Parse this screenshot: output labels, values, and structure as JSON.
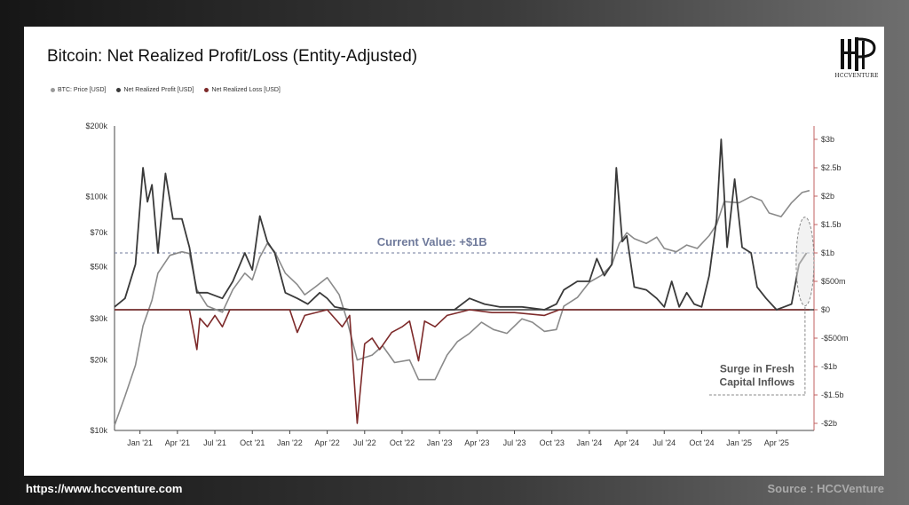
{
  "title": "Bitcoin: Net Realized Profit/Loss (Entity-Adjusted)",
  "logo": {
    "text": "HCCVENTURE"
  },
  "footer": {
    "url": "https://www.hccventure.com",
    "source": "Source : HCCVenture"
  },
  "colors": {
    "price": "#8a8a8a",
    "profit": "#3a3a3a",
    "loss": "#7d2a2a",
    "current": "#6f7a9b"
  },
  "chart_data": {
    "type": "line",
    "title": "Bitcoin: Net Realized Profit/Loss (Entity-Adjusted)",
    "legend": [
      "BTC: Price [USD]",
      "Net Realized Profit [USD]",
      "Net Realized Loss [USD]"
    ],
    "legend_position": "top-left",
    "x_ticks": [
      "Jan '21",
      "Apr '21",
      "Jul '21",
      "Oct '21",
      "Jan '22",
      "Apr '22",
      "Jul '22",
      "Oct '22",
      "Jan '23",
      "Apr '23",
      "Jul '23",
      "Oct '23",
      "Jan '24",
      "Apr '24",
      "Jul '24",
      "Oct '24",
      "Jan '25",
      "Apr '25"
    ],
    "y_left_ticks": [
      "$200k",
      "$100k",
      "$70k",
      "$50k",
      "$30k",
      "$20k",
      "$10k"
    ],
    "y_left_scale": "log",
    "y_left_range": [
      10000,
      200000
    ],
    "y_right_ticks": [
      "$3b",
      "$2.5b",
      "$2b",
      "$1.5b",
      "$1b",
      "$500m",
      "$0",
      "-$500m",
      "-$1b",
      "-$1.5b",
      "-$2b"
    ],
    "y_right_range": [
      -2,
      3
    ],
    "grid": false,
    "annotations": {
      "current_value": "Current Value: +$1B",
      "surge": [
        "Surge in Fresh",
        "Capital Inflows"
      ]
    },
    "series": [
      {
        "name": "BTC: Price [USD]",
        "values": [
          [
            2020.83,
            10500
          ],
          [
            2020.9,
            14000
          ],
          [
            2020.97,
            19000
          ],
          [
            2021.02,
            28000
          ],
          [
            2021.08,
            36000
          ],
          [
            2021.12,
            47000
          ],
          [
            2021.2,
            56000
          ],
          [
            2021.28,
            58000
          ],
          [
            2021.33,
            57000
          ],
          [
            2021.38,
            40000
          ],
          [
            2021.45,
            34000
          ],
          [
            2021.55,
            32000
          ],
          [
            2021.62,
            40000
          ],
          [
            2021.7,
            47000
          ],
          [
            2021.75,
            44000
          ],
          [
            2021.8,
            55000
          ],
          [
            2021.85,
            63000
          ],
          [
            2021.9,
            58000
          ],
          [
            2021.97,
            47000
          ],
          [
            2022.05,
            42000
          ],
          [
            2022.1,
            38000
          ],
          [
            2022.17,
            41000
          ],
          [
            2022.25,
            45000
          ],
          [
            2022.33,
            38000
          ],
          [
            2022.38,
            30000
          ],
          [
            2022.45,
            20000
          ],
          [
            2022.55,
            21000
          ],
          [
            2022.62,
            23000
          ],
          [
            2022.7,
            19500
          ],
          [
            2022.8,
            20000
          ],
          [
            2022.86,
            16500
          ],
          [
            2022.97,
            16500
          ],
          [
            2023.05,
            21000
          ],
          [
            2023.12,
            24000
          ],
          [
            2023.2,
            26000
          ],
          [
            2023.28,
            29000
          ],
          [
            2023.36,
            27000
          ],
          [
            2023.45,
            26000
          ],
          [
            2023.55,
            30000
          ],
          [
            2023.62,
            29000
          ],
          [
            2023.7,
            26500
          ],
          [
            2023.78,
            27000
          ],
          [
            2023.83,
            34000
          ],
          [
            2023.92,
            37000
          ],
          [
            2024.0,
            43000
          ],
          [
            2024.08,
            46000
          ],
          [
            2024.15,
            51000
          ],
          [
            2024.2,
            63000
          ],
          [
            2024.25,
            70000
          ],
          [
            2024.3,
            66000
          ],
          [
            2024.38,
            63000
          ],
          [
            2024.45,
            67000
          ],
          [
            2024.5,
            60000
          ],
          [
            2024.58,
            58000
          ],
          [
            2024.65,
            62000
          ],
          [
            2024.72,
            60000
          ],
          [
            2024.8,
            68000
          ],
          [
            2024.85,
            76000
          ],
          [
            2024.9,
            95000
          ],
          [
            2025.0,
            94000
          ],
          [
            2025.08,
            100000
          ],
          [
            2025.15,
            96000
          ],
          [
            2025.2,
            85000
          ],
          [
            2025.28,
            82000
          ],
          [
            2025.35,
            94000
          ],
          [
            2025.42,
            104000
          ],
          [
            2025.47,
            106000
          ]
        ]
      },
      {
        "name": "Net Realized Profit [USD]",
        "values": [
          [
            2020.83,
            0.05
          ],
          [
            2020.9,
            0.2
          ],
          [
            2020.97,
            0.8
          ],
          [
            2021.02,
            2.5
          ],
          [
            2021.05,
            1.9
          ],
          [
            2021.08,
            2.2
          ],
          [
            2021.12,
            1.0
          ],
          [
            2021.17,
            2.4
          ],
          [
            2021.22,
            1.6
          ],
          [
            2021.28,
            1.6
          ],
          [
            2021.33,
            1.1
          ],
          [
            2021.38,
            0.3
          ],
          [
            2021.45,
            0.3
          ],
          [
            2021.55,
            0.2
          ],
          [
            2021.62,
            0.5
          ],
          [
            2021.7,
            1.0
          ],
          [
            2021.75,
            0.7
          ],
          [
            2021.8,
            1.65
          ],
          [
            2021.85,
            1.2
          ],
          [
            2021.9,
            1.0
          ],
          [
            2021.97,
            0.3
          ],
          [
            2022.05,
            0.2
          ],
          [
            2022.12,
            0.1
          ],
          [
            2022.2,
            0.3
          ],
          [
            2022.25,
            0.2
          ],
          [
            2022.3,
            0.05
          ],
          [
            2022.4,
            0.0
          ],
          [
            2022.6,
            0.0
          ],
          [
            2022.8,
            0.0
          ],
          [
            2023.0,
            0.0
          ],
          [
            2023.1,
            0.0
          ],
          [
            2023.2,
            0.2
          ],
          [
            2023.3,
            0.1
          ],
          [
            2023.4,
            0.05
          ],
          [
            2023.55,
            0.05
          ],
          [
            2023.7,
            0.0
          ],
          [
            2023.78,
            0.1
          ],
          [
            2023.83,
            0.35
          ],
          [
            2023.92,
            0.5
          ],
          [
            2024.0,
            0.5
          ],
          [
            2024.05,
            0.9
          ],
          [
            2024.1,
            0.6
          ],
          [
            2024.15,
            0.8
          ],
          [
            2024.18,
            2.5
          ],
          [
            2024.22,
            1.2
          ],
          [
            2024.25,
            1.3
          ],
          [
            2024.3,
            0.4
          ],
          [
            2024.38,
            0.35
          ],
          [
            2024.45,
            0.2
          ],
          [
            2024.5,
            0.05
          ],
          [
            2024.55,
            0.5
          ],
          [
            2024.6,
            0.05
          ],
          [
            2024.65,
            0.3
          ],
          [
            2024.7,
            0.1
          ],
          [
            2024.75,
            0.05
          ],
          [
            2024.8,
            0.6
          ],
          [
            2024.85,
            1.6
          ],
          [
            2024.88,
            3.0
          ],
          [
            2024.92,
            1.1
          ],
          [
            2024.97,
            2.3
          ],
          [
            2025.02,
            1.1
          ],
          [
            2025.08,
            1.0
          ],
          [
            2025.12,
            0.4
          ],
          [
            2025.18,
            0.2
          ],
          [
            2025.25,
            0.0
          ],
          [
            2025.3,
            0.05
          ],
          [
            2025.35,
            0.1
          ],
          [
            2025.4,
            0.8
          ],
          [
            2025.45,
            1.0
          ]
        ]
      },
      {
        "name": "Net Realized Loss [USD]",
        "values": [
          [
            2020.83,
            0.0
          ],
          [
            2021.33,
            0.0
          ],
          [
            2021.38,
            -0.7
          ],
          [
            2021.4,
            -0.15
          ],
          [
            2021.45,
            -0.3
          ],
          [
            2021.5,
            -0.1
          ],
          [
            2021.55,
            -0.3
          ],
          [
            2021.6,
            0.0
          ],
          [
            2022.0,
            0.0
          ],
          [
            2022.05,
            -0.4
          ],
          [
            2022.1,
            -0.1
          ],
          [
            2022.25,
            0.0
          ],
          [
            2022.35,
            -0.3
          ],
          [
            2022.4,
            -0.1
          ],
          [
            2022.45,
            -2.0
          ],
          [
            2022.5,
            -0.6
          ],
          [
            2022.55,
            -0.5
          ],
          [
            2022.6,
            -0.7
          ],
          [
            2022.68,
            -0.4
          ],
          [
            2022.75,
            -0.3
          ],
          [
            2022.8,
            -0.2
          ],
          [
            2022.86,
            -0.9
          ],
          [
            2022.9,
            -0.2
          ],
          [
            2022.97,
            -0.3
          ],
          [
            2023.05,
            -0.1
          ],
          [
            2023.2,
            0.0
          ],
          [
            2023.35,
            -0.05
          ],
          [
            2023.5,
            -0.05
          ],
          [
            2023.7,
            -0.1
          ],
          [
            2023.8,
            0.0
          ],
          [
            2025.47,
            0.0
          ]
        ]
      }
    ]
  }
}
